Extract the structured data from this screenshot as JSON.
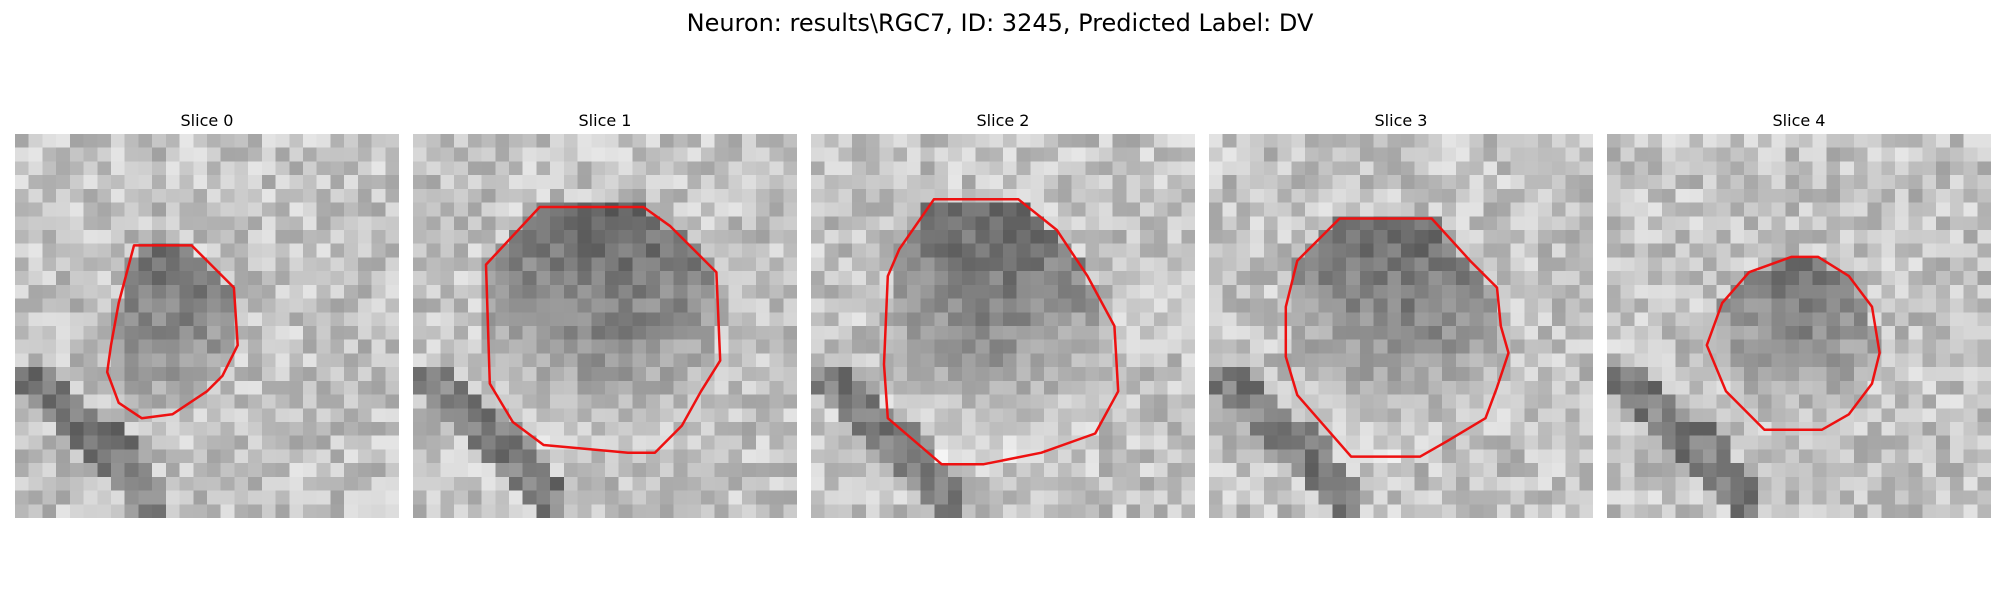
{
  "figure": {
    "title": "Neuron: results\\RGC7, ID: 3245, Predicted Label: DV",
    "contour_color": "#ee1111"
  },
  "slices": [
    {
      "title": "Slice 0",
      "image": "grayscale microscopy patch: dark ring-shaped cell with lighter center, dark band lower-left",
      "contour": [
        [
          0.31,
          0.29
        ],
        [
          0.46,
          0.29
        ],
        [
          0.57,
          0.4
        ],
        [
          0.58,
          0.55
        ],
        [
          0.54,
          0.63
        ],
        [
          0.5,
          0.67
        ],
        [
          0.41,
          0.73
        ],
        [
          0.33,
          0.74
        ],
        [
          0.27,
          0.7
        ],
        [
          0.24,
          0.62
        ],
        [
          0.25,
          0.55
        ],
        [
          0.27,
          0.44
        ]
      ]
    },
    {
      "title": "Slice 1",
      "image": "grayscale microscopy patch: large dark crescent across top of cell, lighter lower interior",
      "contour": [
        [
          0.33,
          0.19
        ],
        [
          0.6,
          0.19
        ],
        [
          0.67,
          0.24
        ],
        [
          0.79,
          0.36
        ],
        [
          0.8,
          0.59
        ],
        [
          0.75,
          0.67
        ],
        [
          0.7,
          0.76
        ],
        [
          0.63,
          0.83
        ],
        [
          0.56,
          0.83
        ],
        [
          0.34,
          0.81
        ],
        [
          0.26,
          0.75
        ],
        [
          0.2,
          0.65
        ],
        [
          0.19,
          0.34
        ]
      ]
    },
    {
      "title": "Slice 2",
      "image": "grayscale microscopy patch: dark upper rim of cell, light center, diagonal dark streak lower-left",
      "contour": [
        [
          0.32,
          0.17
        ],
        [
          0.54,
          0.17
        ],
        [
          0.64,
          0.25
        ],
        [
          0.72,
          0.37
        ],
        [
          0.79,
          0.5
        ],
        [
          0.8,
          0.67
        ],
        [
          0.74,
          0.78
        ],
        [
          0.6,
          0.83
        ],
        [
          0.45,
          0.86
        ],
        [
          0.34,
          0.86
        ],
        [
          0.2,
          0.74
        ],
        [
          0.19,
          0.6
        ],
        [
          0.2,
          0.37
        ],
        [
          0.23,
          0.3
        ]
      ]
    },
    {
      "title": "Slice 3",
      "image": "grayscale microscopy patch: dark clusters in upper half of cell, mid-gray lower half",
      "contour": [
        [
          0.34,
          0.22
        ],
        [
          0.58,
          0.22
        ],
        [
          0.68,
          0.33
        ],
        [
          0.75,
          0.4
        ],
        [
          0.76,
          0.5
        ],
        [
          0.78,
          0.57
        ],
        [
          0.75,
          0.66
        ],
        [
          0.72,
          0.74
        ],
        [
          0.62,
          0.8
        ],
        [
          0.55,
          0.84
        ],
        [
          0.37,
          0.84
        ],
        [
          0.23,
          0.68
        ],
        [
          0.2,
          0.58
        ],
        [
          0.2,
          0.45
        ],
        [
          0.23,
          0.33
        ]
      ]
    },
    {
      "title": "Slice 4",
      "image": "grayscale microscopy patch: small dark blob right of center, dark streak lower-left",
      "contour": [
        [
          0.48,
          0.32
        ],
        [
          0.55,
          0.32
        ],
        [
          0.63,
          0.37
        ],
        [
          0.69,
          0.45
        ],
        [
          0.71,
          0.57
        ],
        [
          0.69,
          0.65
        ],
        [
          0.63,
          0.73
        ],
        [
          0.56,
          0.77
        ],
        [
          0.41,
          0.77
        ],
        [
          0.31,
          0.67
        ],
        [
          0.26,
          0.55
        ],
        [
          0.3,
          0.44
        ],
        [
          0.37,
          0.36
        ]
      ]
    }
  ]
}
